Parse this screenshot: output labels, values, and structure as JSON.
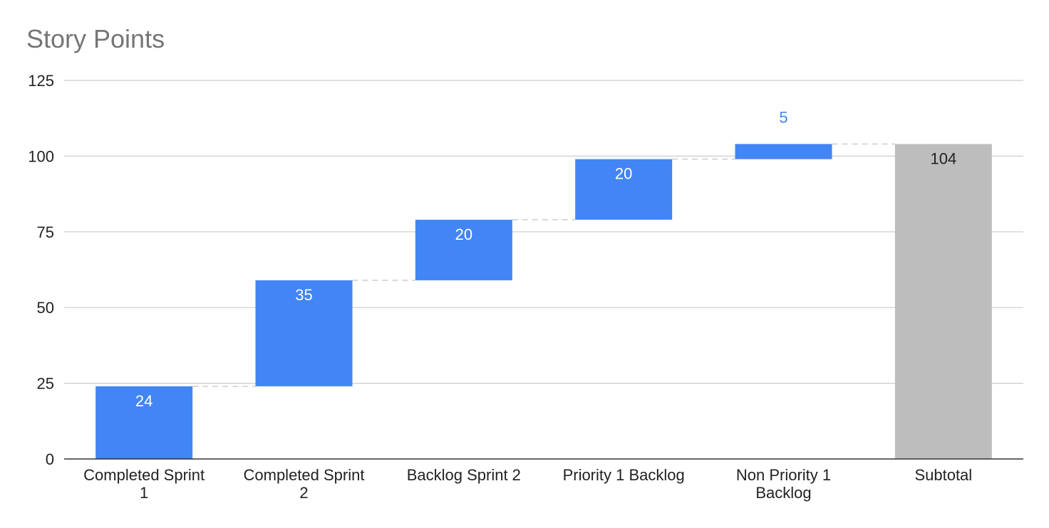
{
  "chart_data": {
    "type": "bar",
    "subtype": "waterfall",
    "title": "Story Points",
    "categories": [
      [
        "Completed Sprint",
        "1"
      ],
      [
        "Completed Sprint",
        "2"
      ],
      [
        "Backlog Sprint 2"
      ],
      [
        "Priority 1 Backlog"
      ],
      [
        "Non Priority 1",
        "Backlog"
      ],
      [
        "Subtotal"
      ]
    ],
    "values": [
      24,
      35,
      20,
      20,
      5,
      104
    ],
    "is_total": [
      false,
      false,
      false,
      false,
      false,
      true
    ],
    "data_labels": [
      "24",
      "35",
      "20",
      "20",
      "5",
      "104"
    ],
    "ylim": [
      0,
      125
    ],
    "yticks": [
      "0",
      "25",
      "50",
      "75",
      "100",
      "125"
    ],
    "grid": true,
    "legend": "none",
    "colors": {
      "increase": "#4285f4",
      "total": "#bdbdbd",
      "gridline": "#cccccc",
      "connector": "#cccccc",
      "title": "#757575"
    }
  }
}
